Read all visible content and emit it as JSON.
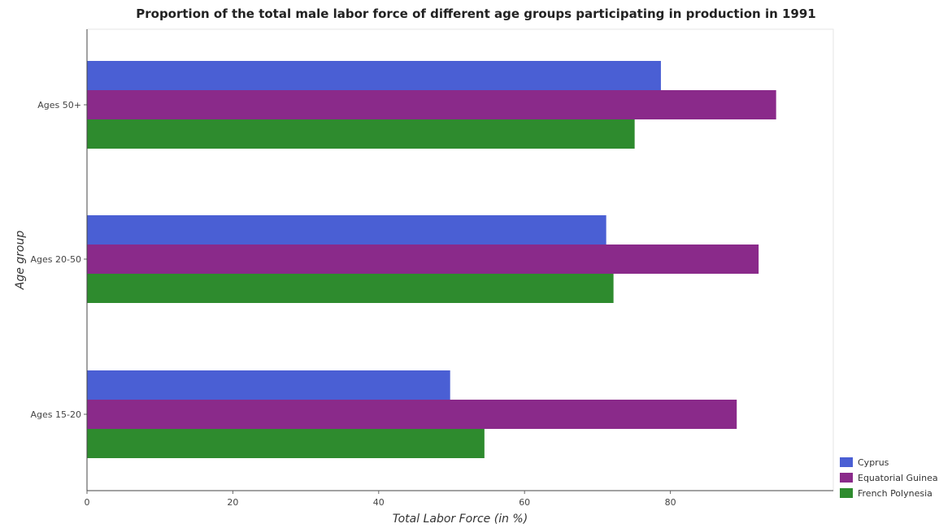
{
  "chart_data": {
    "type": "bar",
    "orientation": "horizontal",
    "title": "Proportion of the total male labor force of different age groups participating in production in 1991",
    "xlabel": "Total Labor Force (in %)",
    "ylabel": "Age group",
    "categories": [
      "Ages 15-20",
      "Ages 20-50",
      "Ages 50+"
    ],
    "xlim": [
      0,
      100
    ],
    "xticks": [
      "0",
      "20",
      "40",
      "60",
      "80"
    ],
    "grid": false,
    "legend_position": "bottom-right",
    "series": [
      {
        "name": "Cyprus",
        "color": "#4a5fd4",
        "values": [
          49.8,
          71.2,
          78.7
        ]
      },
      {
        "name": "Equatorial Guinea",
        "color": "#8a2a8a",
        "values": [
          89.1,
          92.1,
          94.5
        ]
      },
      {
        "name": "French Polynesia",
        "color": "#2e8b2e",
        "values": [
          54.5,
          72.2,
          75.1
        ]
      }
    ]
  }
}
